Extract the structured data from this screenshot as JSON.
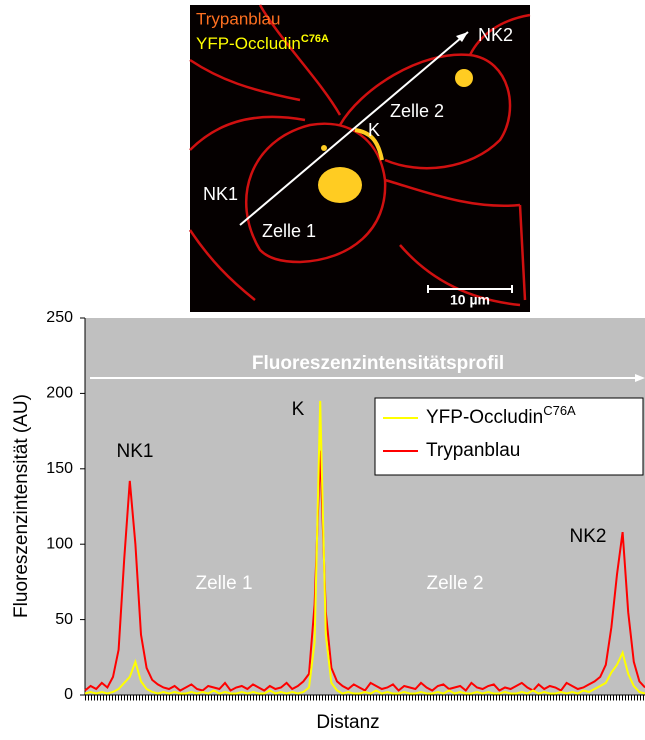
{
  "image": {
    "labels": {
      "stain": "Trypanblau",
      "protein": "YFP-Occludin",
      "protein_superscript": "C76A",
      "nk2": "NK2",
      "k": "K",
      "cell2": "Zelle 2",
      "nk1": "NK1",
      "cell1": "Zelle 1",
      "scale": "10 µm"
    }
  },
  "chart_data": {
    "type": "line",
    "banner": "Fluoreszenzintensitätsprofil",
    "y_label": "Fluoreszenzintensität (AU)",
    "x_label": "Distanz",
    "annotations": [
      "NK1",
      "K",
      "NK2",
      "Zelle 1",
      "Zelle 2"
    ],
    "xlim": [
      0,
      100
    ],
    "ylim": [
      0,
      250
    ],
    "yticks": [
      0,
      50,
      100,
      150,
      200,
      250
    ],
    "grid": false,
    "legend": "upper right",
    "x": [
      0,
      1,
      2,
      3,
      4,
      5,
      6,
      7,
      8,
      9,
      10,
      11,
      12,
      13,
      14,
      15,
      16,
      17,
      18,
      19,
      20,
      21,
      22,
      23,
      24,
      25,
      26,
      27,
      28,
      29,
      30,
      31,
      32,
      33,
      34,
      35,
      36,
      37,
      38,
      39,
      40,
      41,
      42,
      43,
      44,
      45,
      46,
      47,
      48,
      49,
      50,
      51,
      52,
      53,
      54,
      55,
      56,
      57,
      58,
      59,
      60,
      61,
      62,
      63,
      64,
      65,
      66,
      67,
      68,
      69,
      70,
      71,
      72,
      73,
      74,
      75,
      76,
      77,
      78,
      79,
      80,
      81,
      82,
      83,
      84,
      85,
      86,
      87,
      88,
      89,
      90,
      91,
      92,
      93,
      94,
      95,
      96,
      97,
      98,
      99,
      100
    ],
    "series": [
      {
        "name": "YFP-Occludin",
        "name_superscript": "C76A",
        "color": "#ffff00",
        "values": [
          1,
          2,
          1,
          2,
          1,
          2,
          4,
          8,
          12,
          22,
          9,
          4,
          2,
          1,
          2,
          1,
          2,
          1,
          1,
          2,
          1,
          2,
          1,
          3,
          1,
          2,
          1,
          1,
          2,
          1,
          2,
          1,
          1,
          3,
          1,
          2,
          1,
          2,
          1,
          2,
          5,
          35,
          195,
          40,
          8,
          3,
          1,
          2,
          1,
          1,
          2,
          1,
          3,
          1,
          2,
          1,
          1,
          2,
          1,
          1,
          2,
          1,
          1,
          2,
          1,
          3,
          1,
          2,
          1,
          1,
          2,
          1,
          2,
          1,
          1,
          2,
          1,
          1,
          2,
          1,
          3,
          1,
          2,
          1,
          1,
          2,
          1,
          2,
          1,
          3,
          2,
          4,
          6,
          8,
          15,
          20,
          28,
          14,
          6,
          2,
          1
        ]
      },
      {
        "name": "Trypanblau",
        "color": "#ff0000",
        "values": [
          3,
          6,
          4,
          8,
          5,
          12,
          30,
          90,
          142,
          100,
          40,
          18,
          10,
          7,
          5,
          4,
          6,
          3,
          5,
          7,
          4,
          3,
          6,
          5,
          4,
          8,
          3,
          5,
          6,
          4,
          7,
          5,
          3,
          6,
          4,
          5,
          8,
          4,
          6,
          9,
          14,
          60,
          162,
          55,
          18,
          9,
          6,
          4,
          7,
          5,
          3,
          8,
          6,
          4,
          5,
          7,
          3,
          6,
          5,
          4,
          8,
          5,
          3,
          6,
          7,
          4,
          5,
          6,
          3,
          8,
          5,
          4,
          6,
          7,
          3,
          5,
          4,
          6,
          8,
          5,
          3,
          7,
          4,
          6,
          5,
          3,
          8,
          6,
          4,
          5,
          7,
          9,
          12,
          20,
          45,
          80,
          108,
          55,
          22,
          9,
          5
        ]
      }
    ]
  }
}
